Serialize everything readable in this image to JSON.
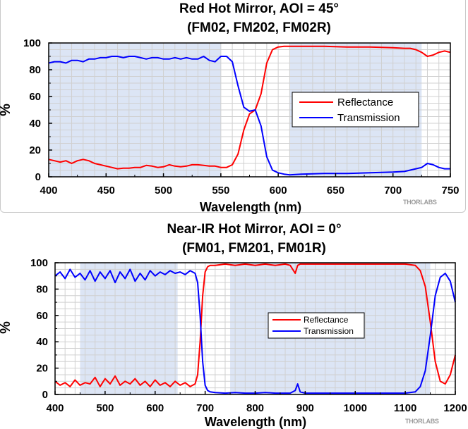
{
  "chart_data": [
    {
      "type": "line",
      "title": "Red Hot Mirror, AOI = 45°",
      "subtitle": "(FM02, FM202, FM02R)",
      "xlabel": "Wavelength (nm)",
      "ylabel": "%",
      "xlim": [
        400,
        750
      ],
      "ylim": [
        0,
        100
      ],
      "xticks": [
        "400",
        "450",
        "500",
        "550",
        "600",
        "650",
        "700",
        "750"
      ],
      "yticks": [
        "0",
        "20",
        "40",
        "60",
        "80",
        "100"
      ],
      "grid": true,
      "legend_position": "right",
      "shaded_regions": [
        [
          400,
          550
        ],
        [
          610,
          725
        ]
      ],
      "brand": "THORLABS",
      "colors": {
        "reflectance": "#ff0000",
        "transmission": "#0000ff",
        "shading": "#dce5f5"
      },
      "series": [
        {
          "name": "Reflectance",
          "color": "#ff0000",
          "x": [
            400,
            405,
            410,
            415,
            420,
            425,
            430,
            435,
            440,
            445,
            450,
            455,
            460,
            465,
            470,
            475,
            480,
            485,
            490,
            495,
            500,
            505,
            510,
            515,
            520,
            525,
            530,
            535,
            540,
            545,
            550,
            555,
            560,
            565,
            570,
            575,
            580,
            585,
            590,
            595,
            600,
            605,
            610,
            620,
            640,
            660,
            680,
            700,
            710,
            715,
            720,
            725,
            730,
            735,
            740,
            745,
            750
          ],
          "y": [
            13,
            12,
            11,
            12,
            10,
            12,
            13,
            12,
            10,
            9,
            8,
            7,
            6,
            6.5,
            6.5,
            7,
            7,
            8.5,
            8,
            7,
            7.5,
            9,
            8,
            7.5,
            8,
            9,
            9,
            8.5,
            8,
            8,
            7,
            7,
            9,
            17,
            35,
            47,
            50,
            62,
            85,
            95,
            97,
            97.5,
            97.5,
            97.5,
            97.5,
            97,
            97,
            96.5,
            96,
            96,
            95,
            93,
            90,
            91,
            93,
            94,
            93
          ]
        },
        {
          "name": "Transmission",
          "color": "#0000ff",
          "x": [
            400,
            405,
            410,
            415,
            420,
            425,
            430,
            435,
            440,
            445,
            450,
            455,
            460,
            465,
            470,
            475,
            480,
            485,
            490,
            495,
            500,
            505,
            510,
            515,
            520,
            525,
            530,
            535,
            540,
            545,
            550,
            555,
            560,
            565,
            570,
            575,
            580,
            585,
            590,
            595,
            600,
            605,
            610,
            620,
            640,
            660,
            680,
            700,
            710,
            715,
            720,
            725,
            730,
            735,
            740,
            745,
            750
          ],
          "y": [
            85,
            86,
            86,
            85,
            87,
            87,
            86,
            88,
            88,
            89,
            89,
            90,
            90,
            89,
            90,
            90,
            89,
            88,
            89,
            89,
            88,
            88,
            89,
            88,
            89,
            88,
            88,
            90,
            87,
            86,
            90,
            90,
            86,
            68,
            52,
            49,
            50,
            38,
            15,
            5,
            3,
            2,
            1.5,
            2,
            2.5,
            2.5,
            3,
            3.5,
            4,
            5,
            6,
            7,
            10,
            9,
            7,
            6,
            6
          ]
        }
      ]
    },
    {
      "type": "line",
      "title": "Near-IR Hot Mirror, AOI = 0°",
      "subtitle": "(FM01, FM201, FM01R)",
      "xlabel": "Wavelength (nm)",
      "ylabel": "%",
      "xlim": [
        400,
        1200
      ],
      "ylim": [
        0,
        100
      ],
      "xticks": [
        "400",
        "500",
        "600",
        "700",
        "800",
        "900",
        "1000",
        "1100",
        "1200"
      ],
      "yticks": [
        "0",
        "20",
        "40",
        "60",
        "80",
        "100"
      ],
      "grid": true,
      "legend_position": "center",
      "shaded_regions": [
        [
          450,
          645
        ],
        [
          750,
          1150
        ]
      ],
      "brand": "THORLABS",
      "colors": {
        "reflectance": "#ff0000",
        "transmission": "#0000ff",
        "shading": "#dce5f5"
      },
      "series": [
        {
          "name": "Reflectance",
          "color": "#ff0000",
          "x": [
            400,
            410,
            420,
            430,
            440,
            450,
            460,
            470,
            480,
            490,
            500,
            510,
            520,
            530,
            540,
            550,
            560,
            570,
            580,
            590,
            600,
            610,
            620,
            630,
            640,
            650,
            660,
            670,
            680,
            685,
            690,
            695,
            700,
            705,
            710,
            720,
            740,
            760,
            780,
            800,
            820,
            840,
            860,
            870,
            880,
            885,
            890,
            900,
            950,
            1000,
            1050,
            1100,
            1120,
            1130,
            1140,
            1150,
            1160,
            1170,
            1180,
            1190,
            1200
          ],
          "y": [
            10,
            7,
            9,
            6,
            11,
            7,
            9,
            8,
            13,
            6,
            12,
            8,
            14,
            7,
            10,
            8,
            12,
            7,
            10,
            6,
            11,
            7,
            9,
            6,
            10,
            7,
            9,
            6,
            8,
            15,
            40,
            75,
            93,
            97,
            98,
            98,
            99,
            98,
            99,
            98,
            99,
            98,
            99,
            98,
            92,
            98,
            99,
            99,
            99,
            99,
            99,
            99,
            98,
            94,
            82,
            55,
            25,
            10,
            8,
            15,
            30
          ]
        },
        {
          "name": "Transmission",
          "color": "#0000ff",
          "x": [
            400,
            410,
            420,
            430,
            440,
            450,
            460,
            470,
            480,
            490,
            500,
            510,
            520,
            530,
            540,
            550,
            560,
            570,
            580,
            590,
            600,
            610,
            620,
            630,
            640,
            650,
            660,
            670,
            680,
            685,
            690,
            695,
            700,
            705,
            710,
            720,
            740,
            760,
            780,
            800,
            820,
            840,
            860,
            870,
            880,
            885,
            890,
            900,
            950,
            1000,
            1050,
            1100,
            1120,
            1130,
            1140,
            1150,
            1160,
            1170,
            1180,
            1190,
            1200
          ],
          "y": [
            90,
            93,
            88,
            95,
            89,
            92,
            87,
            94,
            86,
            93,
            88,
            94,
            85,
            93,
            88,
            95,
            86,
            92,
            87,
            94,
            90,
            93,
            91,
            94,
            92,
            93,
            91,
            94,
            92,
            85,
            60,
            25,
            7,
            3,
            2,
            1.5,
            1,
            1.5,
            1,
            1,
            1.5,
            1,
            1,
            1,
            3,
            8,
            2,
            1,
            1,
            1,
            1,
            1,
            2,
            6,
            18,
            45,
            75,
            89,
            92,
            86,
            70
          ]
        }
      ]
    }
  ]
}
